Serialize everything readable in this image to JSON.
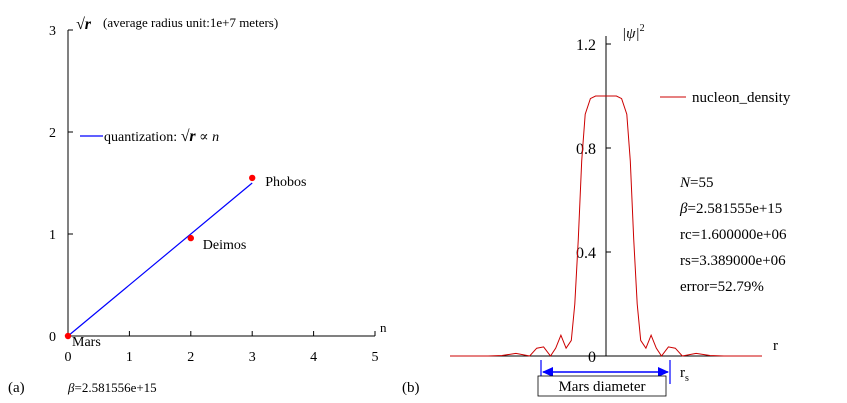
{
  "colors": {
    "line_left": "#0000ff",
    "point": "#ff0000",
    "line_right": "#cc0000",
    "axis": "#000000",
    "arrow": "#0000ff"
  },
  "chart_data": [
    {
      "type": "scatter",
      "panel_label": "(a)",
      "ylabel_symbol": "√r",
      "ylabel_text": "(average radius unit:1e+7 meters)",
      "xlabel": "n",
      "xlim": [
        0,
        5
      ],
      "ylim": [
        0,
        3
      ],
      "xticks": [
        "0",
        "1",
        "2",
        "3",
        "4",
        "5"
      ],
      "yticks": [
        "0",
        "1",
        "2",
        "3"
      ],
      "legend": {
        "line_label": "quantization: ",
        "sym1": "√r",
        "propto": " ∝ ",
        "n": "n",
        "placement": "upper-left"
      },
      "fit_line": {
        "x": [
          0,
          3
        ],
        "y": [
          0,
          1.5
        ]
      },
      "points": [
        {
          "name": "Mars",
          "x": 0,
          "y": 0
        },
        {
          "name": "Deimos",
          "x": 2,
          "y": 0.96
        },
        {
          "name": "Phobos",
          "x": 3,
          "y": 1.55
        }
      ],
      "beta_label": "β",
      "beta_value": "=2.581556e+15"
    },
    {
      "type": "line",
      "panel_label": "(b)",
      "ylabel": "|ψ|",
      "ylabel_sup": "2",
      "xlabel": "r",
      "ylim": [
        0,
        1.2
      ],
      "xlim": [
        -4.5,
        4.5
      ],
      "yticks": [
        "0",
        "0.4",
        "0.8",
        "1.2"
      ],
      "series_name": "nucleon_density",
      "annotation": {
        "N": "N",
        "N_val": "=55",
        "beta": "β",
        "beta_val": "=2.581555e+15",
        "rc": "rc=1.600000e+06",
        "rs": "rs=3.389000e+06",
        "error": "error=52.79%"
      },
      "arrow_label": "Mars diameter",
      "rs_label": "r",
      "rs_sub": "s",
      "series": [
        {
          "name": "nucleon_density",
          "x": [
            -4.5,
            -3.4,
            -3.0,
            -2.6,
            -2.2,
            -2.0,
            -1.8,
            -1.6,
            -1.45,
            -1.3,
            -1.15,
            -1.0,
            -0.9,
            -0.8,
            -0.7,
            -0.6,
            -0.45,
            -0.3,
            -0.15,
            0,
            0.15,
            0.3,
            0.45,
            0.6,
            0.7,
            0.8,
            0.9,
            1.0,
            1.15,
            1.3,
            1.45,
            1.6,
            1.8,
            2.0,
            2.2,
            2.6,
            3.0,
            3.4,
            4.5
          ],
          "y": [
            0.0,
            0.0,
            0.002,
            0.01,
            0.0,
            0.03,
            0.035,
            0.0,
            0.03,
            0.08,
            0.03,
            0.06,
            0.2,
            0.45,
            0.75,
            0.93,
            0.99,
            1.0,
            1.0,
            1.0,
            1.0,
            1.0,
            0.99,
            0.93,
            0.75,
            0.45,
            0.2,
            0.06,
            0.03,
            0.08,
            0.03,
            0.0,
            0.035,
            0.03,
            0.0,
            0.01,
            0.002,
            0.0,
            0.0
          ]
        }
      ]
    }
  ]
}
